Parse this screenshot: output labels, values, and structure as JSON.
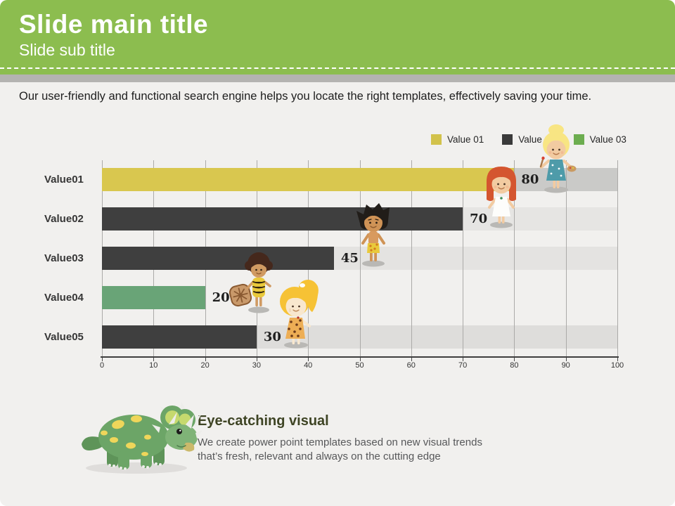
{
  "slide": {
    "title": "Slide main title",
    "subtitle": "Slide sub title",
    "intro": "Our user-friendly and functional search engine helps you locate the right templates, effectively saving your time."
  },
  "chart_data": {
    "type": "bar",
    "orientation": "horizontal",
    "categories": [
      "Value01",
      "Value02",
      "Value03",
      "Value04",
      "Value05"
    ],
    "values": [
      80,
      70,
      45,
      20,
      30
    ],
    "bar_colors": [
      "#D9C74F",
      "#3F3F3F",
      "#3F3F3F",
      "#69A477",
      "#3F3F3F"
    ],
    "track_colors": [
      "#CACAC8",
      "#E6E5E3",
      "#E4E3E1",
      "transparent",
      "#DEDDDB"
    ],
    "xlim": [
      0,
      100
    ],
    "ticks": [
      0,
      10,
      20,
      30,
      40,
      50,
      60,
      70,
      80,
      90,
      100
    ],
    "grid": true,
    "legend_position": "top-right",
    "legend": [
      {
        "label": "Value 01",
        "color": "#D2C24B"
      },
      {
        "label": "Value 02",
        "color": "#3A3A3A"
      },
      {
        "label": "Value 03",
        "color": "#6CAD4F"
      }
    ]
  },
  "footer": {
    "heading": "Eye-catching visual",
    "line1": "We create power point templates based on new visual trends",
    "line2": "that’s fresh, relevant and always on the cutting edge"
  },
  "colors": {
    "header_green": "#8CBD4F",
    "strip_gray": "#B4B3B1",
    "background": "#F1F0EE",
    "heading_olive": "#3E4424"
  },
  "illustrations": [
    "blonde-bun-girl-with-palette",
    "red-haired-girl",
    "black-haired-boy",
    "afro-kid-with-wheel",
    "blonde-ponytail-girl",
    "triceratops-dinosaur"
  ]
}
